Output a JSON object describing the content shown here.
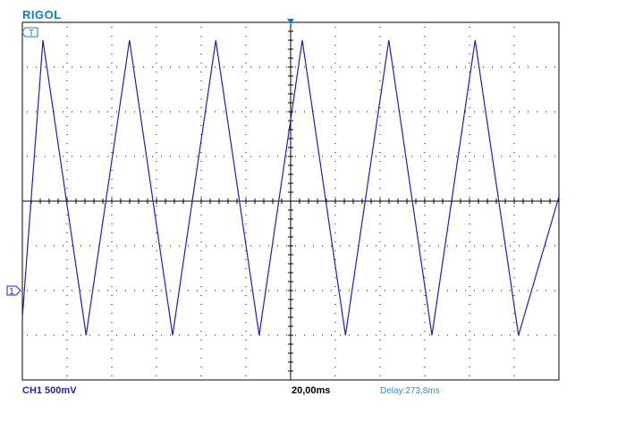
{
  "app": {
    "brand": "RIGOL"
  },
  "colors": {
    "trace": "#1f1fb8",
    "accent": "#0b7ec7",
    "grid": "#000000",
    "delay": "#2a8fd0"
  },
  "markers": {
    "trigger_label": "T",
    "channel_label": "1"
  },
  "status": {
    "channel": "CH1 500mV",
    "timebase": "20,00ms",
    "delay": "Delay:273,8ms"
  },
  "chart_data": {
    "type": "line",
    "title": "",
    "xlabel": "",
    "ylabel": "",
    "grid": true,
    "divisions": {
      "x": 12,
      "y": 8
    },
    "volts_per_div": 0.5,
    "ms_per_div": 20.0,
    "xlim": [
      0,
      240
    ],
    "ylim": [
      -2.0,
      2.0
    ],
    "series": [
      {
        "name": "",
        "x": [
          0,
          9.2,
          28.5,
          47.9,
          67.2,
          86.5,
          105.9,
          125.2,
          144.5,
          163.9,
          183.2,
          202.5,
          221.9,
          240
        ],
        "y": [
          -1.3,
          1.8,
          -1.5,
          1.8,
          -1.5,
          1.8,
          -1.5,
          1.8,
          -1.5,
          1.8,
          -1.5,
          1.8,
          -1.5,
          0.05
        ]
      }
    ]
  }
}
